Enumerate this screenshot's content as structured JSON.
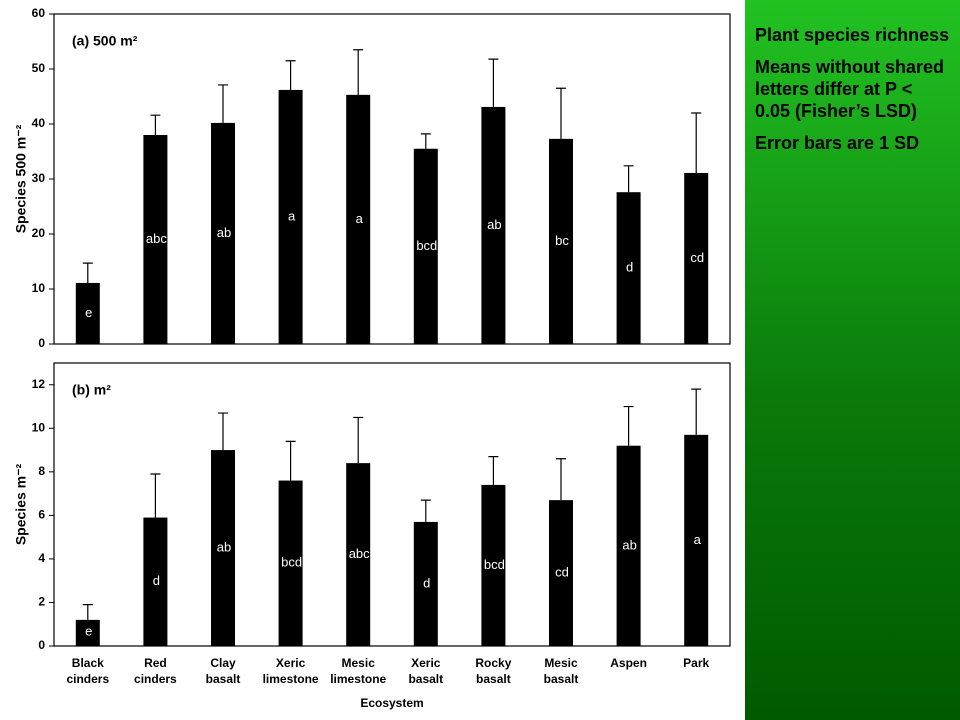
{
  "chart_data": [
    {
      "type": "bar",
      "title": "(a) 500 m²",
      "y_label": "Species 500 m⁻²",
      "values": [
        11.1,
        38,
        40.2,
        46.2,
        45.3,
        35.5,
        43.1,
        37.3,
        27.6,
        31.1
      ],
      "errors": [
        3.6,
        3.6,
        6.9,
        5.3,
        8.2,
        2.7,
        8.7,
        9.2,
        4.8,
        10.9
      ],
      "letters": [
        "e",
        "abc",
        "ab",
        "a",
        "a",
        "bcd",
        "ab",
        "bc",
        "d",
        "cd"
      ],
      "color": "#000000",
      "ylim": [
        0,
        60
      ],
      "yticks": [
        0,
        10,
        20,
        30,
        40,
        50,
        60
      ]
    },
    {
      "type": "bar",
      "title": "(b) m²",
      "y_label": "Species m⁻²",
      "x_label": "Ecosystem",
      "categories": [
        "Black cinders",
        "Red cinders",
        "Clay basalt",
        "Xeric limestone",
        "Mesic limestone",
        "Xeric basalt",
        "Rocky basalt",
        "Mesic basalt",
        "Aspen",
        "Park"
      ],
      "values": [
        1.2,
        5.9,
        9.0,
        7.6,
        8.4,
        5.7,
        7.4,
        6.7,
        9.2,
        9.7
      ],
      "errors": [
        0.7,
        2.0,
        1.7,
        1.8,
        2.1,
        1.0,
        1.3,
        1.9,
        1.8,
        2.1
      ],
      "letters": [
        "e",
        "d",
        "ab",
        "bcd",
        "abc",
        "d",
        "bcd",
        "cd",
        "ab",
        "a"
      ],
      "color": "#000000",
      "ylim": [
        0,
        13
      ],
      "yticks": [
        0,
        2,
        4,
        6,
        8,
        10,
        12
      ]
    }
  ],
  "sidebar": {
    "paragraphs": [
      "Plant species richness",
      "Means without shared letters differ at P < 0.05 (Fisher’s LSD)",
      "Error bars are 1 SD"
    ]
  }
}
